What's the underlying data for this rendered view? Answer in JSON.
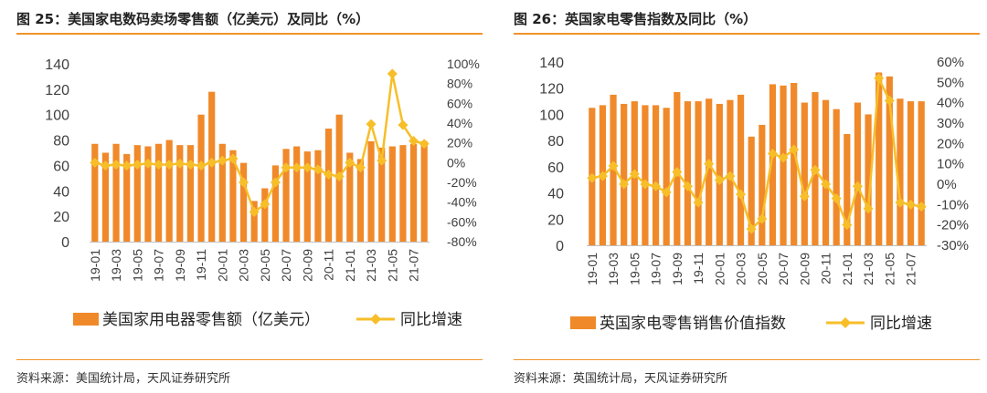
{
  "colors": {
    "bar": "#F0892A",
    "line": "#F7BE28",
    "rule": "#F0932B"
  },
  "left": {
    "title": "图 25：美国家电数码卖场零售额（亿美元）及同比（%）",
    "source": "资料来源：美国统计局，天风证券研究所"
  },
  "right": {
    "title": "图 26：英国家电零售指数及同比（%）",
    "source": "资料来源：英国统计局，天风证券研究所"
  },
  "chart_data": [
    {
      "type": "bar+line",
      "categories": [
        "19-01",
        "19-02",
        "19-03",
        "19-04",
        "19-05",
        "19-06",
        "19-07",
        "19-08",
        "19-09",
        "19-10",
        "19-11",
        "19-12",
        "20-01",
        "20-02",
        "20-03",
        "20-04",
        "20-05",
        "20-06",
        "20-07",
        "20-08",
        "20-09",
        "20-10",
        "20-11",
        "20-12",
        "21-01",
        "21-02",
        "21-03",
        "21-04",
        "21-05",
        "21-06",
        "21-07",
        "21-08"
      ],
      "x_tick_labels": [
        "19-01",
        "19-03",
        "19-05",
        "19-07",
        "19-09",
        "19-11",
        "20-01",
        "20-03",
        "20-05",
        "20-07",
        "20-09",
        "20-11",
        "21-01",
        "21-03",
        "21-05",
        "21-07"
      ],
      "series": [
        {
          "name": "美国家用电器零售额（亿美元）",
          "kind": "bar",
          "axis": "left",
          "values": [
            77,
            70,
            77,
            69,
            76,
            75,
            77,
            80,
            76,
            76,
            100,
            118,
            77,
            72,
            62,
            32,
            42,
            60,
            73,
            75,
            71,
            72,
            89,
            100,
            70,
            65,
            79,
            74,
            75,
            76,
            77,
            79
          ]
        },
        {
          "name": "同比增速",
          "kind": "line",
          "axis": "right",
          "values": [
            0,
            -3,
            -2,
            -3,
            -2,
            -1,
            -2,
            -2,
            -1,
            -2,
            -3,
            0,
            2,
            4,
            -20,
            -50,
            -42,
            -20,
            -5,
            -5,
            -5,
            -7,
            -12,
            -14,
            0,
            -5,
            39,
            2,
            90,
            38,
            22,
            19
          ]
        }
      ],
      "left_axis": {
        "range": [
          0,
          140
        ],
        "ticks": [
          0,
          20,
          40,
          60,
          80,
          100,
          120,
          140
        ]
      },
      "right_axis": {
        "range": [
          -80,
          100
        ],
        "ticks": [
          -80,
          -60,
          -40,
          -20,
          0,
          20,
          40,
          60,
          80,
          100
        ],
        "tick_labels": [
          "-80%",
          "-60%",
          "-40%",
          "-20%",
          "0%",
          "20%",
          "40%",
          "60%",
          "80%",
          "100%"
        ]
      },
      "legend": {
        "bar": "美国家用电器零售额（亿美元）",
        "line": "同比增速"
      }
    },
    {
      "type": "bar+line",
      "categories": [
        "19-01",
        "19-02",
        "19-03",
        "19-04",
        "19-05",
        "19-06",
        "19-07",
        "19-08",
        "19-09",
        "19-10",
        "19-11",
        "19-12",
        "20-01",
        "20-02",
        "20-03",
        "20-04",
        "20-05",
        "20-06",
        "20-07",
        "20-08",
        "20-09",
        "20-10",
        "20-11",
        "20-12",
        "21-01",
        "21-02",
        "21-03",
        "21-04",
        "21-05",
        "21-06",
        "21-07",
        "21-08"
      ],
      "x_tick_labels": [
        "19-01",
        "19-03",
        "19-05",
        "19-07",
        "19-09",
        "19-11",
        "20-01",
        "20-03",
        "20-05",
        "20-07",
        "20-09",
        "20-11",
        "21-01",
        "21-03",
        "21-05",
        "21-07"
      ],
      "series": [
        {
          "name": "英国家电零售销售价值指数",
          "kind": "bar",
          "axis": "left",
          "values": [
            105,
            107,
            115,
            108,
            110,
            107,
            107,
            105,
            117,
            110,
            110,
            112,
            108,
            111,
            115,
            83,
            92,
            123,
            122,
            124,
            109,
            117,
            111,
            104,
            85,
            109,
            100,
            132,
            129,
            112,
            110,
            110
          ]
        },
        {
          "name": "同比增速",
          "kind": "line",
          "axis": "right",
          "values": [
            3,
            4,
            9,
            0,
            5,
            0,
            -1,
            -4,
            6,
            -1,
            -9,
            10,
            2,
            4,
            -5,
            -22,
            -17,
            15,
            13,
            17,
            -6,
            7,
            0,
            -7,
            -20,
            -1,
            -12,
            52,
            41,
            -9,
            -10,
            -11
          ]
        }
      ],
      "left_axis": {
        "range": [
          0,
          140
        ],
        "ticks": [
          0,
          20,
          40,
          60,
          80,
          100,
          120,
          140
        ]
      },
      "right_axis": {
        "range": [
          -30,
          60
        ],
        "ticks": [
          -30,
          -20,
          -10,
          0,
          10,
          20,
          30,
          40,
          50,
          60
        ],
        "tick_labels": [
          "-30%",
          "-20%",
          "-10%",
          "0%",
          "10%",
          "20%",
          "30%",
          "40%",
          "50%",
          "60%"
        ]
      },
      "legend": {
        "bar": "英国家电零售销售价值指数",
        "line": "同比增速"
      }
    }
  ]
}
